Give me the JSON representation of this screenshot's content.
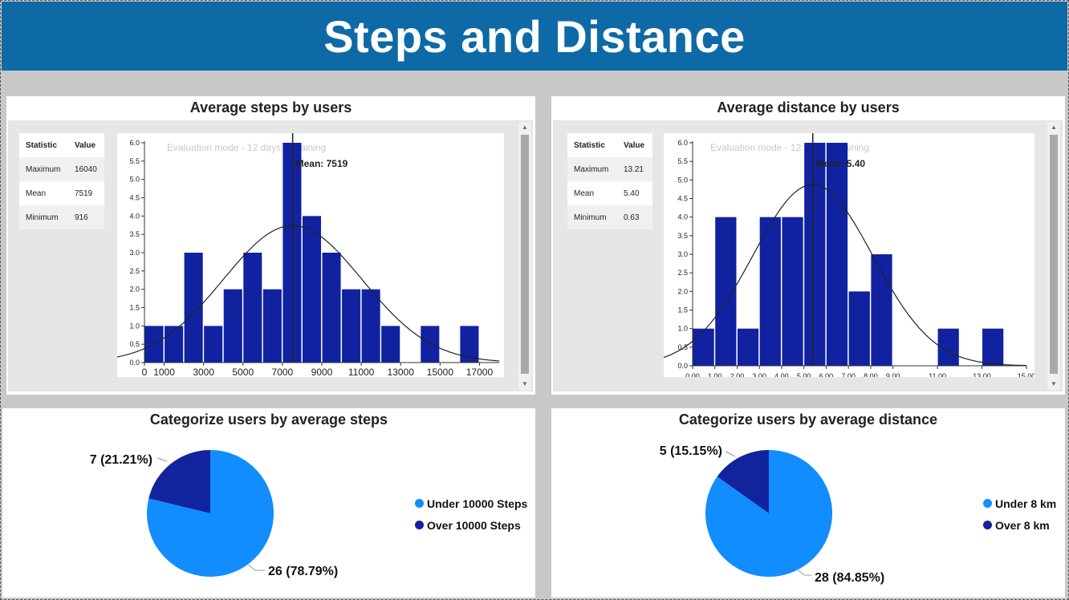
{
  "header": {
    "title": "Steps and Distance"
  },
  "colors": {
    "bar": "#1122a0",
    "pie_light": "#118dff",
    "pie_dark": "#12239e",
    "header_bg": "#0e6aa6"
  },
  "watermark": "Evaluation mode - 12 days remaining",
  "steps_panel": {
    "title": "Average steps by users",
    "stats": {
      "headers": [
        "Statistic",
        "Value"
      ],
      "rows": [
        [
          "Maximum",
          "16040"
        ],
        [
          "Mean",
          "7519"
        ],
        [
          "Minimum",
          "916"
        ]
      ]
    },
    "mean_label": "Mean: 7519"
  },
  "distance_panel": {
    "title": "Average distance by users",
    "stats": {
      "headers": [
        "Statistic",
        "Value"
      ],
      "rows": [
        [
          "Maximum",
          "13.21"
        ],
        [
          "Mean",
          "5.40"
        ],
        [
          "Minimum",
          "0.63"
        ]
      ]
    },
    "mean_label": "Mean: 5.40"
  },
  "steps_pie_panel": {
    "title": "Categorize users by average steps",
    "legend": [
      "Under 10000 Steps",
      "Over 10000 Steps"
    ]
  },
  "distance_pie_panel": {
    "title": "Categorize users by average distance",
    "legend": [
      "Under 8 km",
      "Over 8 km"
    ]
  },
  "chart_data": [
    {
      "type": "bar",
      "subtype": "histogram",
      "title": "Average steps by users",
      "bin_width": 1000,
      "bin_starts": [
        0,
        1000,
        2000,
        3000,
        4000,
        5000,
        6000,
        7000,
        8000,
        9000,
        10000,
        11000,
        12000,
        13000,
        14000,
        15000,
        16000
      ],
      "values": [
        1,
        1,
        3,
        1,
        2,
        3,
        2,
        6,
        4,
        3,
        2,
        2,
        1,
        0,
        1,
        0,
        1
      ],
      "xlim": [
        0,
        18000
      ],
      "ylim": [
        0,
        6
      ],
      "x_ticks": [
        "0",
        "1000",
        "3000",
        "5000",
        "7000",
        "9000",
        "11000",
        "13000",
        "15000",
        "17000"
      ],
      "y_ticks": [
        "0.0",
        "0.5",
        "1.0",
        "1.5",
        "2.0",
        "2.5",
        "3.0",
        "3.5",
        "4.0",
        "4.5",
        "5.0",
        "5.5",
        "6.0"
      ],
      "mean": 7519,
      "mean_label": "Mean: 7519",
      "normal_curve": true
    },
    {
      "type": "bar",
      "subtype": "histogram",
      "title": "Average distance by users",
      "bin_width": 1,
      "bin_starts": [
        0,
        1,
        2,
        3,
        4,
        5,
        6,
        7,
        8,
        9,
        10,
        11,
        12,
        13
      ],
      "values": [
        1,
        4,
        1,
        4,
        4,
        6,
        6,
        2,
        3,
        0,
        0,
        1,
        0,
        1
      ],
      "xlim": [
        0,
        15
      ],
      "ylim": [
        0,
        6
      ],
      "x_ticks": [
        "0.00",
        "1.00",
        "2.00",
        "3.00",
        "4.00",
        "5.00",
        "6.00",
        "7.00",
        "8.00",
        "9.00",
        "11.00",
        "13.00",
        "15.00"
      ],
      "y_ticks": [
        "0.0",
        "0.5",
        "1.0",
        "1.5",
        "2.0",
        "2.5",
        "3.0",
        "3.5",
        "4.0",
        "4.5",
        "5.0",
        "5.5",
        "6.0"
      ],
      "mean": 5.4,
      "mean_label": "Mean: 5.40",
      "normal_curve": true
    },
    {
      "type": "pie",
      "title": "Categorize users by average steps",
      "labels": [
        "Under 10000 Steps",
        "Over 10000 Steps"
      ],
      "values": [
        26,
        7
      ],
      "data_labels": [
        "26 (78.79%)",
        "7 (21.21%)"
      ],
      "legend_position": "right"
    },
    {
      "type": "pie",
      "title": "Categorize users by average distance",
      "labels": [
        "Under 8 km",
        "Over 8 km"
      ],
      "values": [
        28,
        5
      ],
      "data_labels": [
        "28 (84.85%)",
        "5 (15.15%)"
      ],
      "legend_position": "right"
    }
  ]
}
